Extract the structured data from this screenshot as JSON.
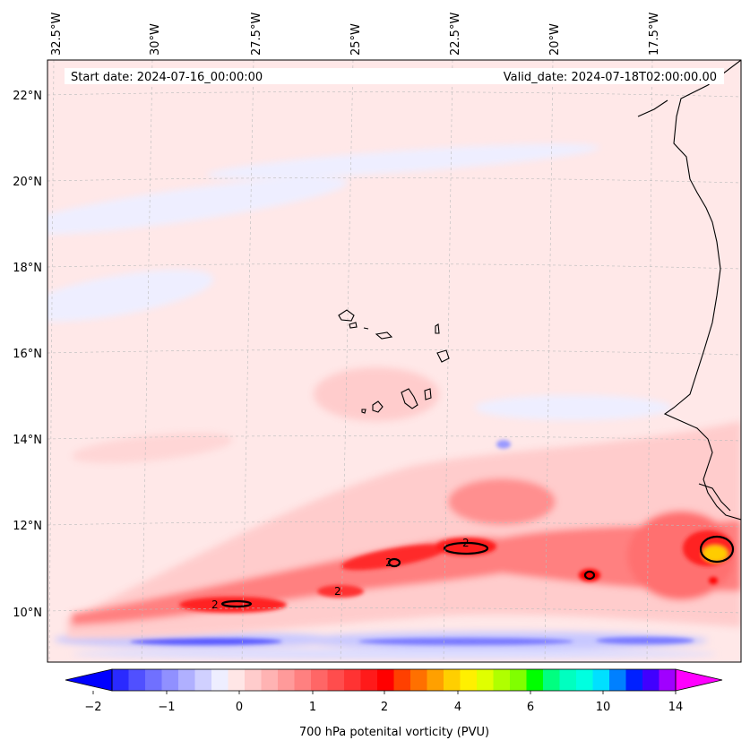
{
  "map": {
    "start_date": "Start date: 2024-07-16_00:00:00",
    "valid_date": "Valid_date: 2024-07-18T02:00:00.00",
    "lon_labels": [
      "32.5°W",
      "30°W",
      "27.5°W",
      "25°W",
      "22.5°W",
      "20°W",
      "17.5°W"
    ],
    "lat_labels": [
      "22°N",
      "20°N",
      "18°N",
      "16°N",
      "14°N",
      "12°N",
      "10°N"
    ],
    "contour_labels": [
      "2",
      "2",
      "2",
      "2"
    ],
    "colorbar": {
      "title": "700 hPa potenital vorticity (PVU)",
      "tick_labels": [
        "−2",
        "−1",
        "0",
        "1",
        "2",
        "4",
        "6",
        "10",
        "14"
      ],
      "colors": [
        "#0000ff",
        "#2a2aff",
        "#5050ff",
        "#7070ff",
        "#9090ff",
        "#b0b0ff",
        "#d0d0ff",
        "#eeeeff",
        "#ffe6e6",
        "#ffcccc",
        "#ffb3b3",
        "#ff9a9a",
        "#ff8080",
        "#ff6666",
        "#ff4d4d",
        "#ff3333",
        "#ff1a1a",
        "#ff0000",
        "#ff4000",
        "#ff7000",
        "#ffa000",
        "#ffcf00",
        "#fff000",
        "#e0ff00",
        "#b0ff00",
        "#80ff00",
        "#00ff00",
        "#00ff80",
        "#00ffc0",
        "#00ffe0",
        "#00e0ff",
        "#0080ff",
        "#0020ff",
        "#4000ff",
        "#a000ff",
        "#ff00ff"
      ]
    },
    "colors": {
      "background_pv": "#ffe8e8",
      "weak_negative": "#eeeeff",
      "negative": "#b8b8ff",
      "strong_negative": "#5a5aff",
      "pv_light": "#ffcccc",
      "pv_medium": "#ff8080",
      "pv_strong": "#ff2222",
      "pv_peak": "#ffcc00",
      "coast": "#000000",
      "grid": "#bbbbbb"
    }
  }
}
